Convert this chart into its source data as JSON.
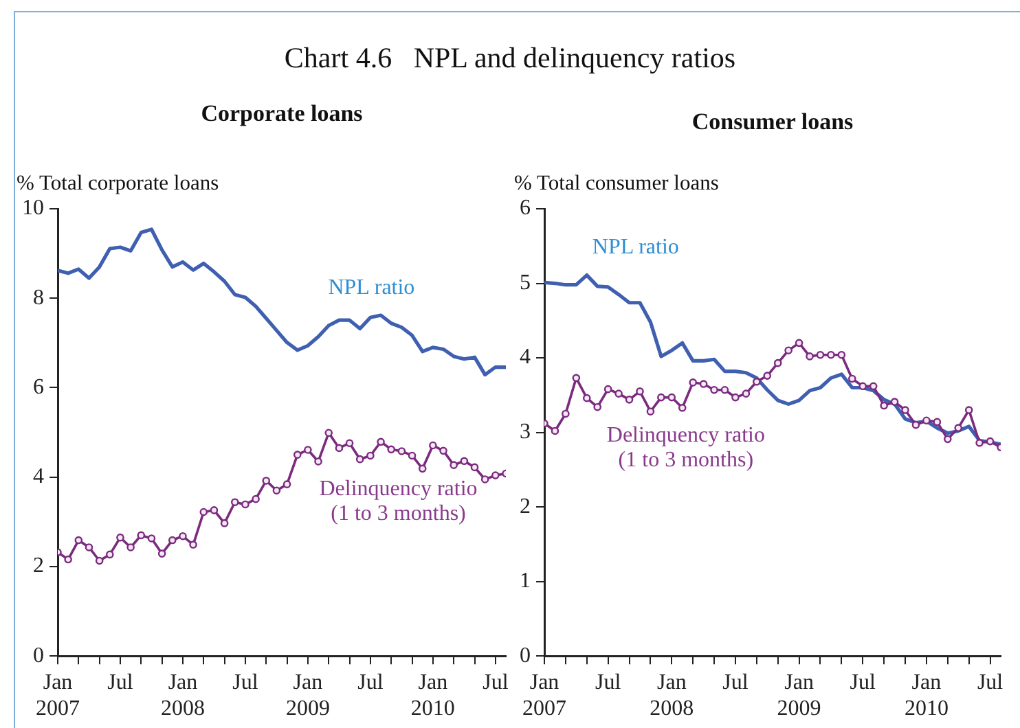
{
  "chart_data": [
    {
      "type": "line",
      "title": "Corporate loans",
      "ylabel": "% Total corporate loans",
      "annotations": [
        "Chart 4.6   NPL and delinquency ratios"
      ],
      "x": [
        "2007-01",
        "2007-02",
        "2007-03",
        "2007-04",
        "2007-05",
        "2007-06",
        "2007-07",
        "2007-08",
        "2007-09",
        "2007-10",
        "2007-11",
        "2007-12",
        "2008-01",
        "2008-02",
        "2008-03",
        "2008-04",
        "2008-05",
        "2008-06",
        "2008-07",
        "2008-08",
        "2008-09",
        "2008-10",
        "2008-11",
        "2008-12",
        "2009-01",
        "2009-02",
        "2009-03",
        "2009-04",
        "2009-05",
        "2009-06",
        "2009-07",
        "2009-08",
        "2009-09",
        "2009-10",
        "2009-11",
        "2009-12",
        "2010-01",
        "2010-02",
        "2010-03",
        "2010-04",
        "2010-05",
        "2010-06",
        "2010-07",
        "2010-08"
      ],
      "series": [
        {
          "name": "NPL ratio",
          "color": "#3f5fb0",
          "marker": "none",
          "values": [
            8.62,
            8.56,
            8.65,
            8.45,
            8.7,
            9.11,
            9.14,
            9.06,
            9.47,
            9.54,
            9.08,
            8.7,
            8.81,
            8.63,
            8.78,
            8.59,
            8.38,
            8.08,
            8.02,
            7.82,
            7.55,
            7.28,
            7.01,
            6.84,
            6.94,
            7.14,
            7.39,
            7.51,
            7.51,
            7.32,
            7.57,
            7.62,
            7.44,
            7.35,
            7.17,
            6.81,
            6.9,
            6.86,
            6.7,
            6.64,
            6.68,
            6.29,
            6.46,
            6.46
          ]
        },
        {
          "name": "Delinquency ratio (1 to 3 months)",
          "color": "#7b2a7f",
          "marker": "circle",
          "values": [
            2.32,
            2.16,
            2.59,
            2.43,
            2.13,
            2.27,
            2.65,
            2.43,
            2.7,
            2.63,
            2.29,
            2.59,
            2.68,
            2.49,
            3.22,
            3.26,
            2.97,
            3.44,
            3.39,
            3.51,
            3.92,
            3.7,
            3.84,
            4.5,
            4.61,
            4.35,
            4.99,
            4.65,
            4.76,
            4.4,
            4.48,
            4.79,
            4.62,
            4.58,
            4.48,
            4.19,
            4.71,
            4.59,
            4.27,
            4.36,
            4.22,
            3.95,
            4.04,
            4.08
          ]
        }
      ],
      "xlim": [
        "2007-01",
        "2010-08"
      ],
      "xticks": [
        {
          "value": "2007-01",
          "label": "Jan 2007"
        },
        {
          "value": "2007-03",
          "label": null
        },
        {
          "value": "2007-05",
          "label": null
        },
        {
          "value": "2007-07",
          "label": "Jul"
        },
        {
          "value": "2007-09",
          "label": null
        },
        {
          "value": "2007-11",
          "label": null
        },
        {
          "value": "2008-01",
          "label": "Jan 2008"
        },
        {
          "value": "2008-03",
          "label": null
        },
        {
          "value": "2008-05",
          "label": null
        },
        {
          "value": "2008-07",
          "label": "Jul"
        },
        {
          "value": "2008-09",
          "label": null
        },
        {
          "value": "2008-11",
          "label": null
        },
        {
          "value": "2009-01",
          "label": "Jan 2009"
        },
        {
          "value": "2009-03",
          "label": null
        },
        {
          "value": "2009-05",
          "label": null
        },
        {
          "value": "2009-07",
          "label": "Jul"
        },
        {
          "value": "2009-09",
          "label": null
        },
        {
          "value": "2009-11",
          "label": null
        },
        {
          "value": "2010-01",
          "label": "Jan 2010"
        },
        {
          "value": "2010-03",
          "label": null
        },
        {
          "value": "2010-05",
          "label": null
        },
        {
          "value": "2010-07",
          "label": "Jul"
        }
      ],
      "ylim": [
        0,
        10
      ],
      "yticks": [
        0,
        2,
        4,
        6,
        8,
        10
      ],
      "grid": false,
      "legend": false,
      "line_style": "solid"
    },
    {
      "type": "line",
      "title": "Consumer loans",
      "ylabel": "% Total consumer loans",
      "x": [
        "2007-01",
        "2007-02",
        "2007-03",
        "2007-04",
        "2007-05",
        "2007-06",
        "2007-07",
        "2007-08",
        "2007-09",
        "2007-10",
        "2007-11",
        "2007-12",
        "2008-01",
        "2008-02",
        "2008-03",
        "2008-04",
        "2008-05",
        "2008-06",
        "2008-07",
        "2008-08",
        "2008-09",
        "2008-10",
        "2008-11",
        "2008-12",
        "2009-01",
        "2009-02",
        "2009-03",
        "2009-04",
        "2009-05",
        "2009-06",
        "2009-07",
        "2009-08",
        "2009-09",
        "2009-10",
        "2009-11",
        "2009-12",
        "2010-01",
        "2010-02",
        "2010-03",
        "2010-04",
        "2010-05",
        "2010-06",
        "2010-07",
        "2010-08"
      ],
      "series": [
        {
          "name": "NPL ratio",
          "color": "#3f5fb0",
          "marker": "none",
          "values": [
            5.01,
            5.0,
            4.98,
            4.98,
            5.11,
            4.96,
            4.95,
            4.85,
            4.74,
            4.74,
            4.48,
            4.02,
            4.1,
            4.2,
            3.96,
            3.96,
            3.98,
            3.82,
            3.82,
            3.8,
            3.73,
            3.57,
            3.43,
            3.38,
            3.43,
            3.56,
            3.6,
            3.73,
            3.78,
            3.6,
            3.6,
            3.56,
            3.44,
            3.38,
            3.18,
            3.13,
            3.15,
            3.06,
            2.99,
            3.02,
            3.08,
            2.89,
            2.87,
            2.84
          ]
        },
        {
          "name": "Delinquency ratio (1 to 3 months)",
          "color": "#7b2a7f",
          "marker": "circle",
          "values": [
            3.12,
            3.02,
            3.25,
            3.73,
            3.46,
            3.34,
            3.58,
            3.52,
            3.44,
            3.55,
            3.28,
            3.47,
            3.47,
            3.33,
            3.67,
            3.65,
            3.57,
            3.57,
            3.47,
            3.52,
            3.68,
            3.76,
            3.93,
            4.1,
            4.2,
            4.02,
            4.04,
            4.04,
            4.04,
            3.72,
            3.62,
            3.62,
            3.36,
            3.41,
            3.3,
            3.1,
            3.16,
            3.14,
            2.91,
            3.06,
            3.3,
            2.86,
            2.88,
            2.8
          ]
        }
      ],
      "xlim": [
        "2007-01",
        "2010-08"
      ],
      "xticks": [
        {
          "value": "2007-01",
          "label": "Jan 2007"
        },
        {
          "value": "2007-03",
          "label": null
        },
        {
          "value": "2007-05",
          "label": null
        },
        {
          "value": "2007-07",
          "label": "Jul"
        },
        {
          "value": "2007-09",
          "label": null
        },
        {
          "value": "2007-11",
          "label": null
        },
        {
          "value": "2008-01",
          "label": "Jan 2008"
        },
        {
          "value": "2008-03",
          "label": null
        },
        {
          "value": "2008-05",
          "label": null
        },
        {
          "value": "2008-07",
          "label": "Jul"
        },
        {
          "value": "2008-09",
          "label": null
        },
        {
          "value": "2008-11",
          "label": null
        },
        {
          "value": "2009-01",
          "label": "Jan 2009"
        },
        {
          "value": "2009-03",
          "label": null
        },
        {
          "value": "2009-05",
          "label": null
        },
        {
          "value": "2009-07",
          "label": "Jul"
        },
        {
          "value": "2009-09",
          "label": null
        },
        {
          "value": "2009-11",
          "label": null
        },
        {
          "value": "2010-01",
          "label": "Jan 2010"
        },
        {
          "value": "2010-03",
          "label": null
        },
        {
          "value": "2010-05",
          "label": null
        },
        {
          "value": "2010-07",
          "label": "Jul"
        }
      ],
      "ylim": [
        0,
        6
      ],
      "yticks": [
        0,
        1,
        2,
        3,
        4,
        5,
        6
      ],
      "grid": false,
      "legend": false,
      "line_style": "solid"
    }
  ]
}
